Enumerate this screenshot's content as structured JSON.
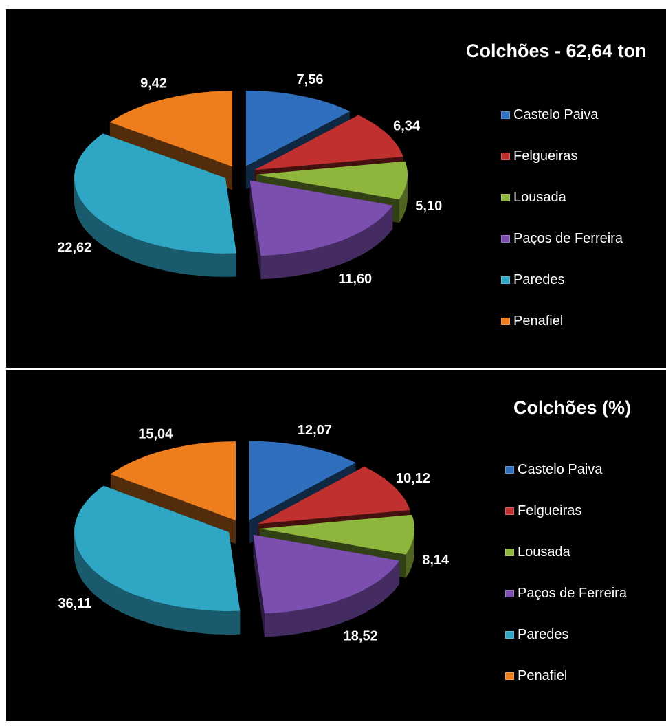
{
  "colors": [
    "#2f6fbd",
    "#c0302f",
    "#8fb63c",
    "#7b4fb0",
    "#2ea6c4",
    "#ee7d1e"
  ],
  "chart_data": [
    {
      "type": "pie",
      "title": "Colchões - 62,64 ton",
      "categories": [
        "Castelo Paiva",
        "Felgueiras",
        "Lousada",
        "Paços de Ferreira",
        "Paredes",
        "Penafiel"
      ],
      "values": [
        7.56,
        6.34,
        5.1,
        11.6,
        22.62,
        9.42
      ],
      "labels": [
        "7,56",
        "6,34",
        "5,10",
        "11,60",
        "22,62",
        "9,42"
      ],
      "legend": "right",
      "style": "3d-exploded"
    },
    {
      "type": "pie",
      "title": "Colchões (%)",
      "categories": [
        "Castelo Paiva",
        "Felgueiras",
        "Lousada",
        "Paços de Ferreira",
        "Paredes",
        "Penafiel"
      ],
      "values": [
        12.07,
        10.12,
        8.14,
        18.52,
        36.11,
        15.04
      ],
      "labels": [
        "12,07",
        "10,12",
        "8,14",
        "18,52",
        "36,11",
        "15,04"
      ],
      "legend": "right",
      "style": "3d-exploded"
    }
  ]
}
